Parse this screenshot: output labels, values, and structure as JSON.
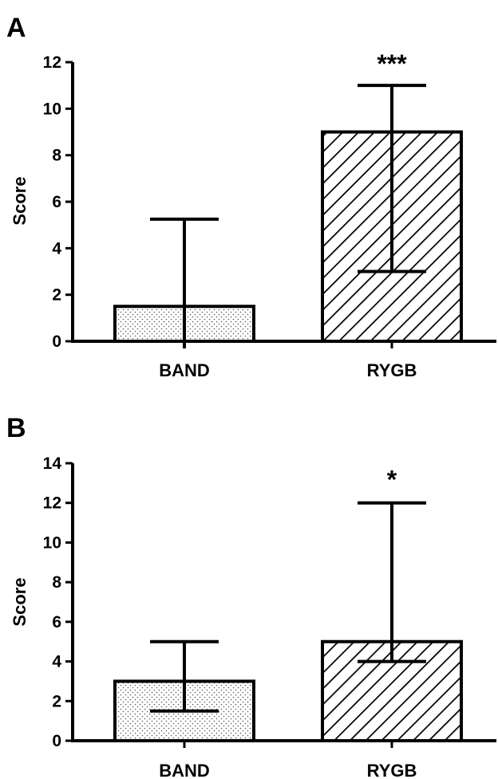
{
  "chart_data": [
    {
      "type": "bar",
      "panel": "A",
      "ylabel": "Score",
      "categories": [
        "BAND",
        "RYGB"
      ],
      "series": [
        {
          "values": [
            1.5,
            9.0
          ],
          "error_upper": [
            5.25,
            11.0
          ],
          "error_lower": [
            0,
            3.0
          ]
        }
      ],
      "ylim": [
        0,
        12
      ],
      "yticks": [
        0,
        2,
        4,
        6,
        8,
        10,
        12
      ],
      "significance": [
        "",
        "***"
      ],
      "bar_fill": [
        "dotted",
        "hatched"
      ]
    },
    {
      "type": "bar",
      "panel": "B",
      "ylabel": "Score",
      "categories": [
        "BAND",
        "RYGB"
      ],
      "series": [
        {
          "values": [
            3.0,
            5.0
          ],
          "error_upper": [
            5.0,
            12.0
          ],
          "error_lower": [
            1.5,
            4.0
          ]
        }
      ],
      "ylim": [
        0,
        14
      ],
      "yticks": [
        0,
        2,
        4,
        6,
        8,
        10,
        12,
        14
      ],
      "significance": [
        "",
        "*"
      ],
      "bar_fill": [
        "dotted",
        "hatched"
      ]
    }
  ]
}
